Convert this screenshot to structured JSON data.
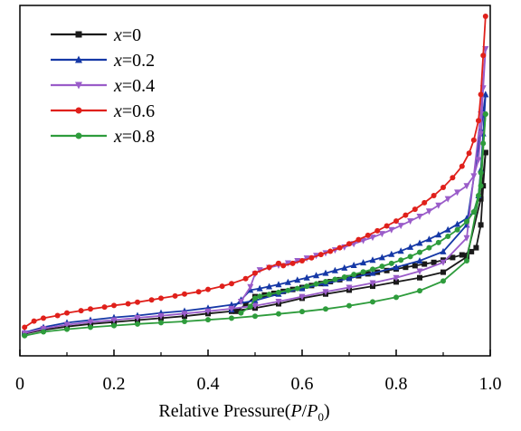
{
  "chart_data": {
    "type": "line",
    "title": "",
    "xlabel_parts": {
      "prefix": "Relative Pressure(",
      "p": "P",
      "slash": "/",
      "p0": "P",
      "sub": "0",
      "suffix": ")"
    },
    "ylabel": "",
    "xlim": [
      0,
      1.0
    ],
    "ylim": [
      0,
      1
    ],
    "y_axis_labels_shown": false,
    "x_ticks": [
      "0",
      "0.2",
      "0.4",
      "0.6",
      "0.8",
      "1.0"
    ],
    "x_tick_values": [
      0,
      0.2,
      0.4,
      0.6,
      0.8,
      1.0
    ],
    "legend_placement": "top-left",
    "grid": false,
    "series": [
      {
        "name": "x=0",
        "legend_var": "x",
        "legend_val": "=0",
        "color": "#1a1a1a",
        "marker": "square",
        "adsorption": [
          [
            0.01,
            0.026
          ],
          [
            0.05,
            0.038
          ],
          [
            0.1,
            0.048
          ],
          [
            0.15,
            0.056
          ],
          [
            0.2,
            0.062
          ],
          [
            0.25,
            0.068
          ],
          [
            0.3,
            0.074
          ],
          [
            0.35,
            0.08
          ],
          [
            0.4,
            0.088
          ],
          [
            0.45,
            0.095
          ],
          [
            0.5,
            0.105
          ],
          [
            0.55,
            0.118
          ],
          [
            0.6,
            0.135
          ],
          [
            0.65,
            0.148
          ],
          [
            0.7,
            0.16
          ],
          [
            0.75,
            0.172
          ],
          [
            0.8,
            0.185
          ],
          [
            0.85,
            0.198
          ],
          [
            0.9,
            0.215
          ],
          [
            0.95,
            0.262
          ],
          [
            0.98,
            0.44
          ],
          [
            0.99,
            0.582
          ]
        ],
        "desorption": [
          [
            0.99,
            0.582
          ],
          [
            0.985,
            0.48
          ],
          [
            0.98,
            0.36
          ],
          [
            0.97,
            0.29
          ],
          [
            0.96,
            0.278
          ],
          [
            0.94,
            0.268
          ],
          [
            0.92,
            0.26
          ],
          [
            0.9,
            0.252
          ],
          [
            0.88,
            0.245
          ],
          [
            0.86,
            0.24
          ],
          [
            0.84,
            0.235
          ],
          [
            0.82,
            0.23
          ],
          [
            0.8,
            0.225
          ],
          [
            0.78,
            0.22
          ],
          [
            0.76,
            0.215
          ],
          [
            0.74,
            0.21
          ],
          [
            0.72,
            0.204
          ],
          [
            0.7,
            0.198
          ],
          [
            0.68,
            0.192
          ],
          [
            0.66,
            0.186
          ],
          [
            0.64,
            0.18
          ],
          [
            0.62,
            0.174
          ],
          [
            0.6,
            0.168
          ],
          [
            0.58,
            0.162
          ],
          [
            0.56,
            0.156
          ],
          [
            0.54,
            0.15
          ],
          [
            0.52,
            0.145
          ],
          [
            0.5,
            0.14
          ],
          [
            0.48,
            0.115
          ],
          [
            0.46,
            0.095
          ]
        ]
      },
      {
        "name": "x=0.2",
        "legend_var": "x",
        "legend_val": "=0.2",
        "color": "#1538a6",
        "marker": "triangle",
        "adsorption": [
          [
            0.01,
            0.03
          ],
          [
            0.05,
            0.046
          ],
          [
            0.1,
            0.06
          ],
          [
            0.15,
            0.068
          ],
          [
            0.2,
            0.076
          ],
          [
            0.25,
            0.082
          ],
          [
            0.3,
            0.09
          ],
          [
            0.35,
            0.096
          ],
          [
            0.4,
            0.105
          ],
          [
            0.45,
            0.115
          ],
          [
            0.5,
            0.128
          ],
          [
            0.55,
            0.148
          ],
          [
            0.6,
            0.165
          ],
          [
            0.65,
            0.18
          ],
          [
            0.7,
            0.196
          ],
          [
            0.75,
            0.212
          ],
          [
            0.8,
            0.23
          ],
          [
            0.85,
            0.25
          ],
          [
            0.9,
            0.278
          ],
          [
            0.95,
            0.36
          ],
          [
            0.98,
            0.65
          ],
          [
            0.99,
            0.76
          ]
        ],
        "desorption": [
          [
            0.99,
            0.76
          ],
          [
            0.985,
            0.64
          ],
          [
            0.98,
            0.53
          ],
          [
            0.975,
            0.45
          ],
          [
            0.965,
            0.4
          ],
          [
            0.95,
            0.38
          ],
          [
            0.93,
            0.362
          ],
          [
            0.91,
            0.345
          ],
          [
            0.89,
            0.33
          ],
          [
            0.87,
            0.316
          ],
          [
            0.85,
            0.304
          ],
          [
            0.83,
            0.292
          ],
          [
            0.81,
            0.28
          ],
          [
            0.79,
            0.27
          ],
          [
            0.77,
            0.26
          ],
          [
            0.75,
            0.252
          ],
          [
            0.73,
            0.244
          ],
          [
            0.71,
            0.236
          ],
          [
            0.69,
            0.228
          ],
          [
            0.67,
            0.22
          ],
          [
            0.65,
            0.212
          ],
          [
            0.63,
            0.205
          ],
          [
            0.61,
            0.198
          ],
          [
            0.59,
            0.191
          ],
          [
            0.57,
            0.184
          ],
          [
            0.55,
            0.177
          ],
          [
            0.53,
            0.171
          ],
          [
            0.51,
            0.165
          ],
          [
            0.49,
            0.16
          ],
          [
            0.47,
            0.13
          ],
          [
            0.45,
            0.1
          ]
        ]
      },
      {
        "name": "x=0.4",
        "legend_var": "x",
        "legend_val": "=0.4",
        "color": "#9a5cc9",
        "marker": "triangle-down",
        "adsorption": [
          [
            0.01,
            0.028
          ],
          [
            0.05,
            0.042
          ],
          [
            0.1,
            0.054
          ],
          [
            0.15,
            0.062
          ],
          [
            0.2,
            0.068
          ],
          [
            0.25,
            0.075
          ],
          [
            0.3,
            0.081
          ],
          [
            0.35,
            0.088
          ],
          [
            0.4,
            0.095
          ],
          [
            0.45,
            0.103
          ],
          [
            0.5,
            0.112
          ],
          [
            0.55,
            0.125
          ],
          [
            0.6,
            0.14
          ],
          [
            0.65,
            0.155
          ],
          [
            0.7,
            0.168
          ],
          [
            0.75,
            0.182
          ],
          [
            0.8,
            0.198
          ],
          [
            0.85,
            0.218
          ],
          [
            0.9,
            0.245
          ],
          [
            0.95,
            0.32
          ],
          [
            0.98,
            0.7
          ],
          [
            0.99,
            0.9
          ]
        ],
        "desorption": [
          [
            0.99,
            0.9
          ],
          [
            0.985,
            0.78
          ],
          [
            0.98,
            0.64
          ],
          [
            0.975,
            0.56
          ],
          [
            0.965,
            0.51
          ],
          [
            0.95,
            0.48
          ],
          [
            0.93,
            0.46
          ],
          [
            0.91,
            0.44
          ],
          [
            0.89,
            0.42
          ],
          [
            0.87,
            0.402
          ],
          [
            0.85,
            0.386
          ],
          [
            0.83,
            0.372
          ],
          [
            0.81,
            0.358
          ],
          [
            0.79,
            0.345
          ],
          [
            0.77,
            0.333
          ],
          [
            0.75,
            0.322
          ],
          [
            0.73,
            0.312
          ],
          [
            0.71,
            0.302
          ],
          [
            0.69,
            0.292
          ],
          [
            0.67,
            0.283
          ],
          [
            0.65,
            0.274
          ],
          [
            0.63,
            0.266
          ],
          [
            0.61,
            0.258
          ],
          [
            0.59,
            0.25
          ],
          [
            0.57,
            0.243
          ],
          [
            0.55,
            0.236
          ],
          [
            0.53,
            0.229
          ],
          [
            0.51,
            0.222
          ],
          [
            0.5,
            0.21
          ],
          [
            0.49,
            0.17
          ],
          [
            0.47,
            0.125
          ]
        ]
      },
      {
        "name": "x=0.6",
        "legend_var": "x",
        "legend_val": "=0.6",
        "color": "#e0201b",
        "marker": "circle",
        "adsorption": [
          [
            0.01,
            0.046
          ],
          [
            0.03,
            0.065
          ],
          [
            0.05,
            0.074
          ],
          [
            0.08,
            0.082
          ],
          [
            0.1,
            0.09
          ],
          [
            0.13,
            0.097
          ],
          [
            0.15,
            0.102
          ],
          [
            0.18,
            0.108
          ],
          [
            0.2,
            0.113
          ],
          [
            0.23,
            0.118
          ],
          [
            0.25,
            0.123
          ],
          [
            0.28,
            0.13
          ],
          [
            0.3,
            0.135
          ],
          [
            0.33,
            0.142
          ],
          [
            0.35,
            0.148
          ],
          [
            0.38,
            0.155
          ],
          [
            0.4,
            0.162
          ],
          [
            0.43,
            0.172
          ],
          [
            0.45,
            0.18
          ],
          [
            0.48,
            0.195
          ],
          [
            0.5,
            0.212
          ],
          [
            0.53,
            0.23
          ],
          [
            0.55,
            0.242
          ]
        ],
        "desorption": [
          [
            0.99,
            1.0
          ],
          [
            0.985,
            0.88
          ],
          [
            0.98,
            0.76
          ],
          [
            0.975,
            0.68
          ],
          [
            0.965,
            0.62
          ],
          [
            0.955,
            0.58
          ],
          [
            0.94,
            0.54
          ],
          [
            0.92,
            0.505
          ],
          [
            0.9,
            0.475
          ],
          [
            0.88,
            0.45
          ],
          [
            0.86,
            0.428
          ],
          [
            0.84,
            0.408
          ],
          [
            0.82,
            0.39
          ],
          [
            0.8,
            0.372
          ],
          [
            0.78,
            0.357
          ],
          [
            0.76,
            0.342
          ],
          [
            0.74,
            0.328
          ],
          [
            0.72,
            0.315
          ],
          [
            0.7,
            0.302
          ],
          [
            0.68,
            0.29
          ],
          [
            0.66,
            0.279
          ],
          [
            0.64,
            0.269
          ],
          [
            0.62,
            0.259
          ],
          [
            0.6,
            0.25
          ],
          [
            0.58,
            0.242
          ],
          [
            0.56,
            0.235
          ],
          [
            0.55,
            0.242
          ]
        ]
      },
      {
        "name": "x=0.8",
        "legend_var": "x",
        "legend_val": "=0.8",
        "color": "#2e9c3c",
        "marker": "circle",
        "adsorption": [
          [
            0.01,
            0.02
          ],
          [
            0.05,
            0.032
          ],
          [
            0.1,
            0.04
          ],
          [
            0.15,
            0.046
          ],
          [
            0.2,
            0.051
          ],
          [
            0.25,
            0.056
          ],
          [
            0.3,
            0.06
          ],
          [
            0.35,
            0.064
          ],
          [
            0.4,
            0.069
          ],
          [
            0.45,
            0.074
          ],
          [
            0.5,
            0.08
          ],
          [
            0.55,
            0.087
          ],
          [
            0.6,
            0.094
          ],
          [
            0.65,
            0.102
          ],
          [
            0.7,
            0.112
          ],
          [
            0.75,
            0.124
          ],
          [
            0.8,
            0.138
          ],
          [
            0.85,
            0.158
          ],
          [
            0.9,
            0.188
          ],
          [
            0.95,
            0.25
          ],
          [
            0.98,
            0.48
          ],
          [
            0.99,
            0.7
          ]
        ],
        "desorption": [
          [
            0.99,
            0.7
          ],
          [
            0.985,
            0.61
          ],
          [
            0.98,
            0.52
          ],
          [
            0.975,
            0.45
          ],
          [
            0.965,
            0.4
          ],
          [
            0.95,
            0.37
          ],
          [
            0.93,
            0.345
          ],
          [
            0.91,
            0.325
          ],
          [
            0.89,
            0.306
          ],
          [
            0.87,
            0.29
          ],
          [
            0.85,
            0.276
          ],
          [
            0.83,
            0.263
          ],
          [
            0.81,
            0.252
          ],
          [
            0.79,
            0.242
          ],
          [
            0.77,
            0.233
          ],
          [
            0.75,
            0.224
          ],
          [
            0.73,
            0.216
          ],
          [
            0.71,
            0.208
          ],
          [
            0.69,
            0.2
          ],
          [
            0.67,
            0.193
          ],
          [
            0.65,
            0.186
          ],
          [
            0.63,
            0.179
          ],
          [
            0.61,
            0.172
          ],
          [
            0.59,
            0.165
          ],
          [
            0.57,
            0.159
          ],
          [
            0.55,
            0.153
          ],
          [
            0.53,
            0.147
          ],
          [
            0.51,
            0.141
          ],
          [
            0.5,
            0.135
          ],
          [
            0.49,
            0.11
          ],
          [
            0.47,
            0.09
          ]
        ]
      }
    ]
  }
}
